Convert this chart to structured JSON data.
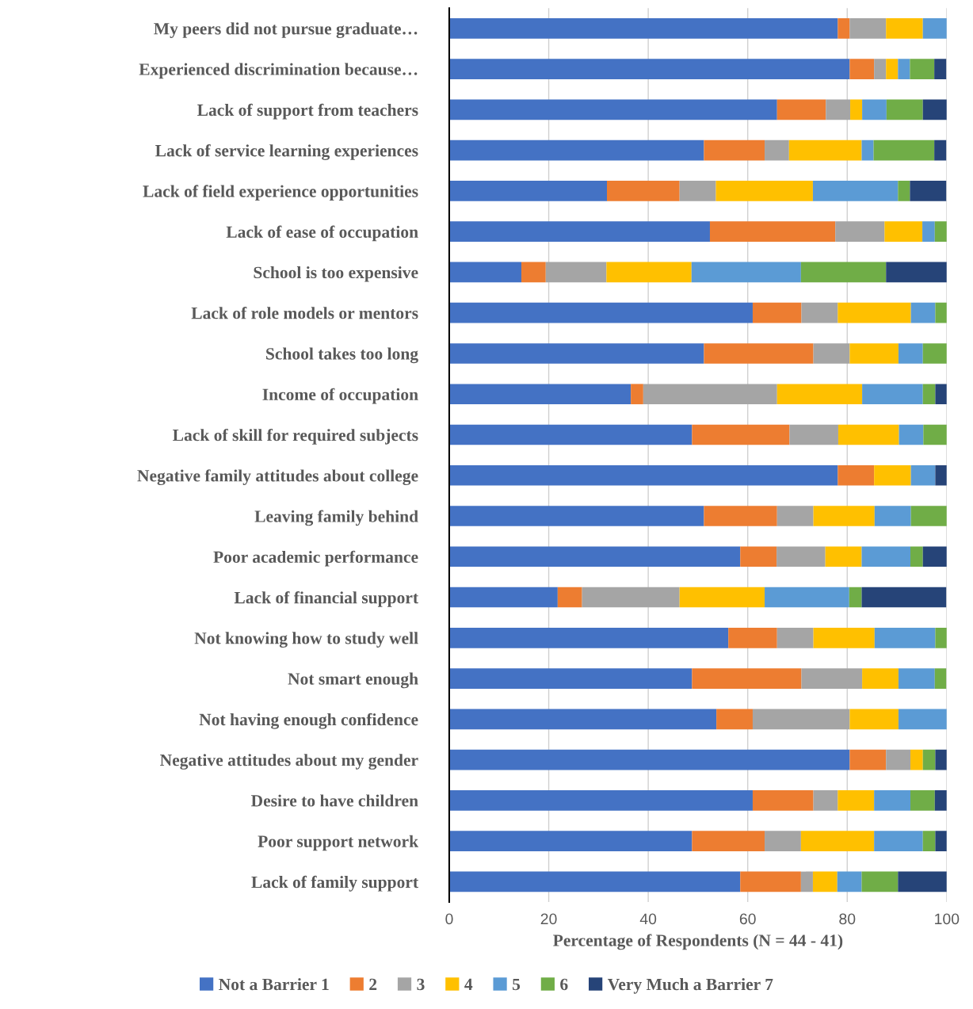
{
  "chart_data": {
    "type": "bar",
    "orientation": "horizontal",
    "stacked": true,
    "xlabel": "Percentage of Respondents (N = 44 - 41)",
    "categories": [
      "My peers did not pursue graduate…",
      "Experienced discrimination because…",
      "Lack of support from teachers",
      "Lack of service learning experiences",
      "Lack of field experience opportunities",
      "Lack of ease of occupation",
      "School is too expensive",
      "Lack of role models or mentors",
      "School takes too long",
      "Income of occupation",
      "Lack of skill for required subjects",
      "Negative family attitudes about college",
      "Leaving family behind",
      "Poor academic performance",
      "Lack of financial support",
      "Not knowing how to study well",
      "Not smart enough",
      "Not having enough confidence",
      "Negative attitudes about my gender",
      "Desire to have children",
      "Poor support network",
      "Lack of family support"
    ],
    "series": [
      {
        "name": "Not a Barrier 1",
        "color": "#4472c4",
        "values": [
          78.1,
          80.5,
          65.9,
          51.2,
          31.7,
          52.4,
          14.5,
          61.0,
          51.2,
          36.5,
          48.8,
          78.1,
          51.2,
          58.5,
          21.8,
          56.1,
          48.8,
          53.7,
          80.5,
          61.0,
          48.8,
          58.5
        ]
      },
      {
        "name": "2",
        "color": "#ed7d31",
        "values": [
          2.4,
          4.9,
          9.8,
          12.2,
          14.6,
          25.2,
          4.9,
          9.8,
          22.0,
          2.5,
          19.6,
          7.3,
          14.7,
          7.3,
          4.9,
          9.8,
          22.0,
          7.3,
          7.3,
          12.2,
          14.6,
          12.2
        ]
      },
      {
        "name": "3",
        "color": "#a5a5a5",
        "values": [
          7.3,
          2.4,
          4.9,
          4.9,
          7.3,
          9.9,
          12.2,
          7.3,
          7.3,
          26.9,
          9.8,
          null,
          7.3,
          9.8,
          19.6,
          7.3,
          12.2,
          19.5,
          4.9,
          4.9,
          7.3,
          2.4
        ]
      },
      {
        "name": "4",
        "color": "#ffc000",
        "values": [
          7.4,
          2.4,
          2.4,
          14.6,
          19.5,
          7.6,
          17.1,
          14.7,
          9.8,
          17.1,
          12.2,
          7.4,
          12.3,
          7.3,
          17.1,
          12.3,
          7.3,
          9.8,
          2.5,
          7.3,
          14.7,
          4.9
        ]
      },
      {
        "name": "5",
        "color": "#5b9bd5",
        "values": [
          4.8,
          2.4,
          4.9,
          2.4,
          17.1,
          2.5,
          22.0,
          4.9,
          4.9,
          12.2,
          4.9,
          4.9,
          7.3,
          9.8,
          17.0,
          12.2,
          7.3,
          9.7,
          null,
          7.3,
          9.8,
          4.9
        ]
      },
      {
        "name": "6",
        "color": "#70ad47",
        "values": [
          null,
          4.9,
          7.3,
          12.2,
          2.4,
          2.4,
          17.1,
          2.3,
          4.8,
          2.5,
          4.7,
          null,
          7.2,
          2.5,
          2.5,
          2.3,
          2.3,
          null,
          2.5,
          4.9,
          2.5,
          7.3
        ]
      },
      {
        "name": "Very Much a Barrier 7",
        "color": "#264478",
        "values": [
          null,
          2.4,
          4.8,
          2.4,
          7.3,
          null,
          12.2,
          null,
          null,
          2.3,
          null,
          2.3,
          null,
          4.8,
          17.0,
          null,
          null,
          null,
          2.3,
          2.4,
          2.3,
          9.8
        ]
      }
    ],
    "xlim": [
      0,
      100
    ],
    "xticks": [
      0,
      20,
      40,
      60,
      80,
      100
    ],
    "grid": "x",
    "legend": "bottom"
  }
}
